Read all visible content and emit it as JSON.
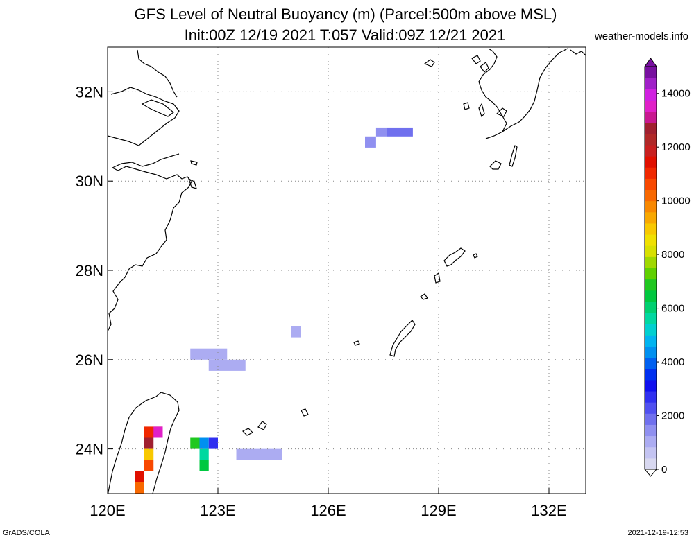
{
  "header": {
    "title_line1": "GFS Level of Neutral Buoyancy (m) (Parcel:500m above MSL)",
    "title_line2": "Init:00Z 12/19 2021 T:057 Valid:09Z 12/21 2021",
    "site": "weather-models.info"
  },
  "footer": {
    "left": "GrADS/COLA",
    "right": "2021-12-19-12:53"
  },
  "map": {
    "lon_range": [
      120,
      133
    ],
    "lat_range": [
      23,
      33
    ],
    "lon_ticks": [
      {
        "value": 120,
        "label": "120E"
      },
      {
        "value": 123,
        "label": "123E"
      },
      {
        "value": 126,
        "label": "126E"
      },
      {
        "value": 129,
        "label": "129E"
      },
      {
        "value": 132,
        "label": "132E"
      }
    ],
    "lat_ticks": [
      {
        "value": 24,
        "label": "24N"
      },
      {
        "value": 26,
        "label": "26N"
      },
      {
        "value": 28,
        "label": "28N"
      },
      {
        "value": 30,
        "label": "30N"
      },
      {
        "value": 32,
        "label": "32N"
      }
    ],
    "grid": "dotted"
  },
  "colorbar": {
    "min": 0,
    "max": 15000,
    "labels": [
      {
        "value": 0,
        "label": "0"
      },
      {
        "value": 2000,
        "label": "2000"
      },
      {
        "value": 4000,
        "label": "4000"
      },
      {
        "value": 6000,
        "label": "6000"
      },
      {
        "value": 8000,
        "label": "8000"
      },
      {
        "value": 10000,
        "label": "10000"
      },
      {
        "value": 12000,
        "label": "12000"
      },
      {
        "value": 14000,
        "label": "14000"
      }
    ],
    "colors": [
      "#d8d8f0",
      "#c4c4f2",
      "#acacf2",
      "#9090f0",
      "#7070ee",
      "#5050f0",
      "#3030f0",
      "#1010ee",
      "#0030f0",
      "#0060f0",
      "#0090f0",
      "#00b4f0",
      "#00d0d0",
      "#00d8a0",
      "#00d070",
      "#00c840",
      "#20c820",
      "#60d000",
      "#a0d800",
      "#d8e000",
      "#f0e000",
      "#f8c800",
      "#f8a800",
      "#f88800",
      "#f86800",
      "#f84800",
      "#f02800",
      "#e01000",
      "#c82020",
      "#b02828",
      "#a02030",
      "#c81890",
      "#e020c8",
      "#d020e0",
      "#a020c8",
      "#7810a0"
    ]
  },
  "cells": [
    {
      "lon0": 127.6,
      "lon1": 128.3,
      "lat0": 31.0,
      "lat1": 31.2,
      "value": 1700
    },
    {
      "lon0": 127.3,
      "lon1": 127.6,
      "lat0": 31.0,
      "lat1": 31.2,
      "value": 1300
    },
    {
      "lon0": 127.0,
      "lon1": 127.3,
      "lat0": 30.75,
      "lat1": 31.0,
      "value": 1500
    },
    {
      "lon0": 125.0,
      "lon1": 125.25,
      "lat0": 26.5,
      "lat1": 26.75,
      "value": 1200
    },
    {
      "lon0": 122.25,
      "lon1": 123.25,
      "lat0": 26.0,
      "lat1": 26.25,
      "value": 1200
    },
    {
      "lon0": 122.75,
      "lon1": 123.75,
      "lat0": 25.75,
      "lat1": 26.0,
      "value": 1100
    },
    {
      "lon0": 123.5,
      "lon1": 124.75,
      "lat0": 23.75,
      "lat1": 24.0,
      "value": 900
    },
    {
      "lon0": 121.0,
      "lon1": 121.5,
      "lat0": 24.25,
      "lat1": 24.5,
      "value": 11000
    },
    {
      "lon0": 121.0,
      "lon1": 121.25,
      "lat0": 24.0,
      "lat1": 24.25,
      "value": 12500
    },
    {
      "lon0": 121.25,
      "lon1": 121.5,
      "lat0": 24.25,
      "lat1": 24.5,
      "value": 13500
    },
    {
      "lon0": 121.0,
      "lon1": 121.25,
      "lat0": 23.75,
      "lat1": 24.0,
      "value": 9000
    },
    {
      "lon0": 121.0,
      "lon1": 121.25,
      "lat0": 23.5,
      "lat1": 23.75,
      "value": 10500
    },
    {
      "lon0": 120.75,
      "lon1": 121.0,
      "lat0": 23.25,
      "lat1": 23.5,
      "value": 11500
    },
    {
      "lon0": 120.75,
      "lon1": 121.0,
      "lat0": 23.0,
      "lat1": 23.25,
      "value": 10000
    },
    {
      "lon0": 122.25,
      "lon1": 122.5,
      "lat0": 24.0,
      "lat1": 24.25,
      "value": 7000
    },
    {
      "lon0": 122.5,
      "lon1": 122.75,
      "lat0": 24.0,
      "lat1": 24.25,
      "value": 4500
    },
    {
      "lon0": 122.75,
      "lon1": 123.0,
      "lat0": 24.0,
      "lat1": 24.25,
      "value": 2500
    },
    {
      "lon0": 122.5,
      "lon1": 122.75,
      "lat0": 23.75,
      "lat1": 24.0,
      "value": 5500
    },
    {
      "lon0": 122.5,
      "lon1": 122.75,
      "lat0": 23.5,
      "lat1": 23.75,
      "value": 6500
    }
  ]
}
